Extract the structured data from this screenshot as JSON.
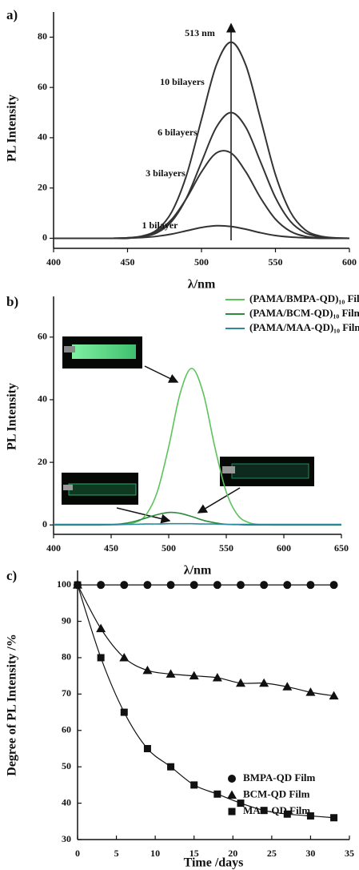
{
  "chart_data": [
    {
      "type": "line",
      "label": "a)",
      "xlabel": "λ/nm",
      "ylabel": "PL Intensity",
      "annotations": [
        "513 nm"
      ],
      "x": [
        400,
        410,
        420,
        430,
        440,
        450,
        460,
        470,
        480,
        490,
        500,
        510,
        520,
        530,
        540,
        550,
        560,
        570,
        580,
        590,
        600
      ],
      "xlim": [
        400,
        600
      ],
      "xticks": [
        400,
        450,
        500,
        550,
        600
      ],
      "ylim": [
        -4,
        90
      ],
      "yticks": [
        0,
        20,
        40,
        60,
        80
      ],
      "series": [
        {
          "name": "10 bilayers",
          "color": "#333333",
          "values": [
            0,
            0,
            0,
            0,
            0,
            0.2,
            0.9,
            3.4,
            10.6,
            25.3,
            47.3,
            68.8,
            78,
            68.8,
            47.3,
            25.3,
            10.6,
            3.4,
            0.9,
            0.2,
            0
          ]
        },
        {
          "name": "6 bilayers",
          "color": "#333333",
          "values": [
            0,
            0,
            0,
            0,
            0,
            0,
            0.6,
            2.2,
            6.8,
            16.2,
            30.3,
            44.1,
            50,
            44.1,
            30.3,
            16.2,
            6.8,
            2.2,
            0.6,
            0.1,
            0
          ]
        },
        {
          "name": "3 bilayers",
          "color": "#333333",
          "values": [
            0,
            0,
            0,
            0,
            0,
            0.2,
            0.8,
            2.8,
            7.6,
            16.0,
            26.4,
            33.9,
            33.9,
            26.4,
            16.0,
            7.6,
            2.8,
            0.8,
            0.2,
            0,
            0
          ]
        },
        {
          "name": "1 bilayer",
          "color": "#333333",
          "values": [
            0,
            0,
            0,
            0,
            0,
            0.1,
            0.3,
            0.8,
            1.7,
            3.0,
            4.3,
            5.0,
            4.7,
            3.6,
            2.2,
            1.1,
            0.5,
            0.2,
            0,
            0,
            0
          ]
        }
      ]
    },
    {
      "type": "line",
      "label": "b)",
      "xlabel": "λ/nm",
      "ylabel": "PL Intensity",
      "legend": "upper right",
      "x": [
        400,
        410,
        420,
        430,
        440,
        450,
        460,
        470,
        480,
        490,
        500,
        510,
        520,
        530,
        540,
        550,
        560,
        570,
        580,
        590,
        600,
        610,
        620,
        630,
        640,
        650
      ],
      "xlim": [
        400,
        650
      ],
      "xticks": [
        400,
        450,
        500,
        550,
        600,
        650
      ],
      "ylim": [
        -3,
        73
      ],
      "yticks": [
        0,
        20,
        40,
        60
      ],
      "series": [
        {
          "name": "(PAMA/BMPA-QD)₁₀ Film",
          "color": "#5cc35c",
          "values": [
            0,
            0,
            0,
            0,
            0,
            0,
            0.1,
            0.7,
            3.1,
            10.5,
            25.0,
            42.1,
            50,
            42.1,
            25.0,
            10.5,
            3.1,
            0.7,
            0.1,
            0,
            0,
            0,
            0,
            0,
            0,
            0
          ]
        },
        {
          "name": "(PAMA/BCM-QD)₁₀ Film",
          "color": "#2e8b3e",
          "values": [
            0,
            0,
            0,
            0,
            0,
            0.1,
            0.4,
            1.1,
            2.2,
            3.3,
            4.0,
            3.7,
            2.7,
            1.5,
            0.7,
            0.2,
            0.1,
            0,
            0,
            0,
            0,
            0,
            0,
            0,
            0,
            0
          ]
        },
        {
          "name": "(PAMA/MAA-QD)₁₀ Film",
          "color": "#2b8a9c",
          "values": [
            0.2,
            0.2,
            0.2,
            0.2,
            0.2,
            0.2,
            0.2,
            0.2,
            0.3,
            0.3,
            0.4,
            0.4,
            0.4,
            0.3,
            0.3,
            0.2,
            0.2,
            0.2,
            0.2,
            0.2,
            0.2,
            0.2,
            0.2,
            0.2,
            0.2,
            0.2
          ]
        }
      ]
    },
    {
      "type": "line",
      "label": "c)",
      "xlabel": "Time /days",
      "ylabel": "Degree of PL Intensity /%",
      "legend": "lower right",
      "x": [
        0,
        3,
        6,
        9,
        12,
        15,
        18,
        21,
        24,
        27,
        30,
        33
      ],
      "xlim": [
        0,
        35
      ],
      "xticks": [
        0,
        5,
        10,
        15,
        20,
        25,
        30,
        35
      ],
      "ylim": [
        30,
        104
      ],
      "yticks": [
        30,
        40,
        50,
        60,
        70,
        80,
        90,
        100
      ],
      "series": [
        {
          "name": "BMPA-QD Film",
          "color": "#111111",
          "marker": "circle",
          "values": [
            100,
            100,
            100,
            100,
            100,
            100,
            100,
            100,
            100,
            100,
            100,
            100
          ]
        },
        {
          "name": "BCM-QD Film",
          "color": "#111111",
          "marker": "triangle",
          "values": [
            100,
            88,
            80,
            76.5,
            75.5,
            75,
            74.5,
            73,
            73,
            72,
            70.5,
            69.5
          ]
        },
        {
          "name": "MAA-QD Film",
          "color": "#111111",
          "marker": "square",
          "values": [
            100,
            80,
            65,
            55,
            50,
            45,
            42.5,
            40,
            38,
            37,
            36.5,
            36
          ]
        }
      ]
    }
  ]
}
